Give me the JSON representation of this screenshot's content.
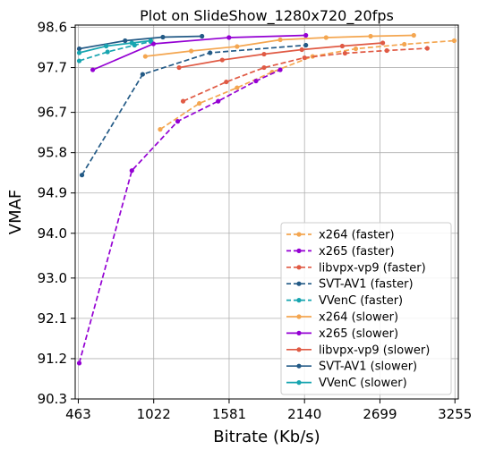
{
  "chart_data": {
    "type": "line",
    "title": "Plot on SlideShow_1280x720_20fps",
    "xlabel": "Bitrate (Kb/s)",
    "ylabel": "VMAF",
    "xlim": [
      440,
      3280
    ],
    "ylim": [
      90.3,
      98.65
    ],
    "xticks": [
      463,
      1022,
      1581,
      2140,
      2699,
      3255
    ],
    "yticks": [
      90.3,
      91.2,
      92.1,
      93.0,
      94.0,
      94.9,
      95.8,
      96.7,
      97.7,
      98.6
    ],
    "xtick_labels": [
      "463",
      "1022",
      "1581",
      "2140",
      "2699",
      "3255"
    ],
    "ytick_labels": [
      "90.3",
      "91.2",
      "92.1",
      "93.0",
      "94.0",
      "94.9",
      "95.8",
      "96.7",
      "97.7",
      "98.6"
    ],
    "grid": true,
    "legend_position": "lower-right",
    "series": [
      {
        "name": "x264 (faster)",
        "color": "#f4a650",
        "dash": true,
        "x": [
          1070,
          1360,
          1640,
          1900,
          2200,
          2520,
          2880,
          3250
        ],
        "y": [
          96.32,
          96.9,
          97.25,
          97.6,
          97.95,
          98.12,
          98.22,
          98.3
        ]
      },
      {
        "name": "x265 (faster)",
        "color": "#9400d3",
        "dash": true,
        "x": [
          470,
          860,
          1200,
          1500,
          1780,
          1960
        ],
        "y": [
          91.1,
          95.4,
          96.5,
          96.95,
          97.4,
          97.65
        ]
      },
      {
        "name": "libvpx-vp9 (faster)",
        "color": "#e05a44",
        "dash": true,
        "x": [
          1240,
          1560,
          1840,
          2140,
          2440,
          2750,
          3050
        ],
        "y": [
          96.95,
          97.38,
          97.7,
          97.92,
          98.02,
          98.08,
          98.13
        ]
      },
      {
        "name": "SVT-AV1 (faster)",
        "color": "#235a86",
        "dash": true,
        "x": [
          490,
          940,
          1440,
          2150
        ],
        "y": [
          95.3,
          97.55,
          98.03,
          98.2
        ]
      },
      {
        "name": "VVenC (faster)",
        "color": "#17a5b0",
        "dash": true,
        "x": [
          470,
          680,
          880,
          1000
        ],
        "y": [
          97.85,
          98.05,
          98.2,
          98.28
        ]
      },
      {
        "name": "x264 (slower)",
        "color": "#f4a650",
        "dash": false,
        "x": [
          960,
          1300,
          1640,
          1960,
          2300,
          2630,
          2950
        ],
        "y": [
          97.95,
          98.07,
          98.17,
          98.32,
          98.37,
          98.4,
          98.42
        ]
      },
      {
        "name": "x265 (slower)",
        "color": "#9400d3",
        "dash": false,
        "x": [
          570,
          1020,
          1580,
          2150
        ],
        "y": [
          97.65,
          98.23,
          98.37,
          98.42
        ]
      },
      {
        "name": "libvpx-vp9 (slower)",
        "color": "#e05a44",
        "dash": false,
        "x": [
          1210,
          1530,
          1840,
          2120,
          2420,
          2720
        ],
        "y": [
          97.7,
          97.87,
          98.0,
          98.1,
          98.18,
          98.25
        ]
      },
      {
        "name": "SVT-AV1 (slower)",
        "color": "#235a86",
        "dash": false,
        "x": [
          470,
          810,
          1090,
          1380
        ],
        "y": [
          98.12,
          98.3,
          98.38,
          98.4
        ]
      },
      {
        "name": "VVenC (slower)",
        "color": "#17a5b0",
        "dash": false,
        "x": [
          470,
          670,
          860,
          1000
        ],
        "y": [
          98.03,
          98.18,
          98.25,
          98.3
        ]
      }
    ]
  }
}
